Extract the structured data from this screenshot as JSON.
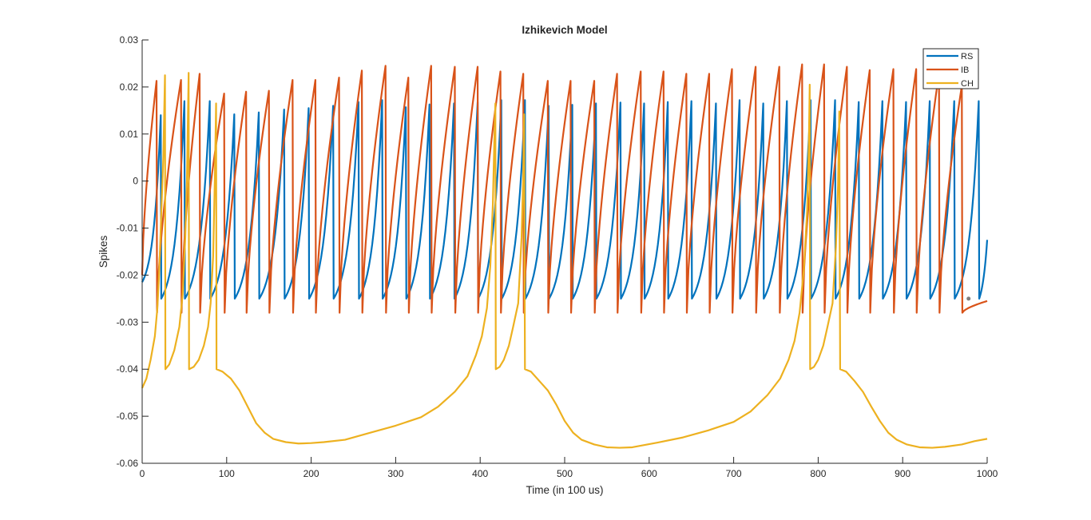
{
  "chart_data": {
    "type": "line",
    "title": "Izhikevich Model",
    "xlabel": "Time (in 100 us)",
    "ylabel": "Spikes",
    "xlim": [
      0,
      1000
    ],
    "ylim": [
      -0.06,
      0.03
    ],
    "xticks": [
      0,
      100,
      200,
      300,
      400,
      500,
      600,
      700,
      800,
      900,
      1000
    ],
    "yticks": [
      -0.06,
      -0.05,
      -0.04,
      -0.03,
      -0.02,
      -0.01,
      0,
      0.01,
      0.02,
      0.03
    ],
    "xtick_labels": [
      "0",
      "100",
      "200",
      "300",
      "400",
      "500",
      "600",
      "700",
      "800",
      "900",
      "1000"
    ],
    "ytick_labels": [
      "-0.06",
      "-0.05",
      "-0.04",
      "-0.03",
      "-0.02",
      "-0.01",
      "0",
      "0.01",
      "0.02",
      "0.03"
    ],
    "grid": false,
    "legend_position": "top-right",
    "series": [
      {
        "name": "RS",
        "color": "#0072BD",
        "start": -0.0215,
        "reset": -0.025,
        "shape": 1.0,
        "spikes": [
          {
            "t": 22,
            "peak": 0.014
          },
          {
            "t": 50,
            "peak": 0.017
          },
          {
            "t": 80,
            "peak": 0.017
          },
          {
            "t": 109,
            "peak": 0.0142
          },
          {
            "t": 138,
            "peak": 0.0146
          },
          {
            "t": 168,
            "peak": 0.0152
          },
          {
            "t": 197,
            "peak": 0.0155
          },
          {
            "t": 226,
            "peak": 0.016
          },
          {
            "t": 256,
            "peak": 0.0168
          },
          {
            "t": 284,
            "peak": 0.0172
          },
          {
            "t": 312,
            "peak": 0.0157
          },
          {
            "t": 340,
            "peak": 0.0163
          },
          {
            "t": 369,
            "peak": 0.0165
          },
          {
            "t": 397,
            "peak": 0.0168
          },
          {
            "t": 425,
            "peak": 0.0172
          },
          {
            "t": 453,
            "peak": 0.0172
          },
          {
            "t": 481,
            "peak": 0.016
          },
          {
            "t": 509,
            "peak": 0.0162
          },
          {
            "t": 537,
            "peak": 0.0165
          },
          {
            "t": 566,
            "peak": 0.0167
          },
          {
            "t": 594,
            "peak": 0.0165
          },
          {
            "t": 622,
            "peak": 0.0168
          },
          {
            "t": 650,
            "peak": 0.017
          },
          {
            "t": 679,
            "peak": 0.0165
          },
          {
            "t": 707,
            "peak": 0.0172
          },
          {
            "t": 735,
            "peak": 0.0165
          },
          {
            "t": 763,
            "peak": 0.017
          },
          {
            "t": 791,
            "peak": 0.0172
          },
          {
            "t": 820,
            "peak": 0.0172
          },
          {
            "t": 848,
            "peak": 0.0168
          },
          {
            "t": 876,
            "peak": 0.017
          },
          {
            "t": 904,
            "peak": 0.0168
          },
          {
            "t": 932,
            "peak": 0.017
          },
          {
            "t": 961,
            "peak": 0.017
          },
          {
            "t": 990,
            "peak": 0.017
          }
        ],
        "end_value": -0.0125
      },
      {
        "name": "IB",
        "color": "#D95319",
        "start": -0.02,
        "reset": -0.028,
        "shape": 0.65,
        "spikes": [
          {
            "t": 17,
            "peak": 0.0213
          },
          {
            "t": 46,
            "peak": 0.0215
          },
          {
            "t": 68,
            "peak": 0.0228
          },
          {
            "t": 97,
            "peak": 0.0186
          },
          {
            "t": 123,
            "peak": 0.019
          },
          {
            "t": 150,
            "peak": 0.0192
          },
          {
            "t": 178,
            "peak": 0.0215
          },
          {
            "t": 205,
            "peak": 0.0215
          },
          {
            "t": 233,
            "peak": 0.022
          },
          {
            "t": 260,
            "peak": 0.0235
          },
          {
            "t": 288,
            "peak": 0.0245
          },
          {
            "t": 315,
            "peak": 0.022
          },
          {
            "t": 342,
            "peak": 0.0245
          },
          {
            "t": 370,
            "peak": 0.0243
          },
          {
            "t": 397,
            "peak": 0.0243
          },
          {
            "t": 424,
            "peak": 0.0233
          },
          {
            "t": 451,
            "peak": 0.0228
          },
          {
            "t": 480,
            "peak": 0.0213
          },
          {
            "t": 507,
            "peak": 0.0213
          },
          {
            "t": 535,
            "peak": 0.0213
          },
          {
            "t": 562,
            "peak": 0.0228
          },
          {
            "t": 590,
            "peak": 0.0233
          },
          {
            "t": 617,
            "peak": 0.0233
          },
          {
            "t": 644,
            "peak": 0.0228
          },
          {
            "t": 671,
            "peak": 0.0228
          },
          {
            "t": 698,
            "peak": 0.0238
          },
          {
            "t": 726,
            "peak": 0.0243
          },
          {
            "t": 754,
            "peak": 0.0243
          },
          {
            "t": 781,
            "peak": 0.0248
          },
          {
            "t": 807,
            "peak": 0.0248
          },
          {
            "t": 834,
            "peak": 0.0243
          },
          {
            "t": 861,
            "peak": 0.0236
          },
          {
            "t": 889,
            "peak": 0.0238
          },
          {
            "t": 916,
            "peak": 0.0238
          },
          {
            "t": 943,
            "peak": 0.023
          },
          {
            "t": 970,
            "peak": 0.0203
          }
        ],
        "end_value": -0.0255
      },
      {
        "name": "CH",
        "color": "#EDB120",
        "points": [
          [
            0,
            -0.044
          ],
          [
            5,
            -0.042
          ],
          [
            10,
            -0.038
          ],
          [
            15,
            -0.033
          ],
          [
            18,
            -0.027
          ],
          [
            20,
            -0.02
          ],
          [
            22,
            -0.01
          ],
          [
            25,
            0.005
          ],
          [
            27,
            0.0225
          ],
          [
            27.5,
            -0.04
          ],
          [
            32,
            -0.039
          ],
          [
            38,
            -0.036
          ],
          [
            44,
            -0.031
          ],
          [
            48,
            -0.024
          ],
          [
            51,
            -0.012
          ],
          [
            53,
            0.0005
          ],
          [
            55,
            0.023
          ],
          [
            55.5,
            -0.04
          ],
          [
            61,
            -0.0395
          ],
          [
            67,
            -0.038
          ],
          [
            73,
            -0.035
          ],
          [
            78,
            -0.031
          ],
          [
            81,
            -0.026
          ],
          [
            84,
            -0.016
          ],
          [
            86,
            0.0005
          ],
          [
            87.5,
            0.0165
          ],
          [
            88,
            -0.04
          ],
          [
            95,
            -0.0405
          ],
          [
            105,
            -0.042
          ],
          [
            115,
            -0.0445
          ],
          [
            125,
            -0.048
          ],
          [
            135,
            -0.0515
          ],
          [
            145,
            -0.0535
          ],
          [
            155,
            -0.0548
          ],
          [
            170,
            -0.0555
          ],
          [
            185,
            -0.0558
          ],
          [
            200,
            -0.0557
          ],
          [
            215,
            -0.0555
          ],
          [
            240,
            -0.055
          ],
          [
            270,
            -0.0535
          ],
          [
            300,
            -0.052
          ],
          [
            330,
            -0.0502
          ],
          [
            350,
            -0.048
          ],
          [
            370,
            -0.0448
          ],
          [
            385,
            -0.0415
          ],
          [
            395,
            -0.037
          ],
          [
            402,
            -0.033
          ],
          [
            408,
            -0.027
          ],
          [
            412,
            -0.018
          ],
          [
            415,
            -0.005
          ],
          [
            417,
            0.0105
          ],
          [
            418,
            0.0165
          ],
          [
            418.5,
            -0.04
          ],
          [
            423,
            -0.0395
          ],
          [
            428,
            -0.038
          ],
          [
            434,
            -0.035
          ],
          [
            439,
            -0.031
          ],
          [
            445,
            -0.026
          ],
          [
            449,
            -0.012
          ],
          [
            451,
            0.0012
          ],
          [
            452,
            0.0142
          ],
          [
            453,
            -0.04
          ],
          [
            460,
            -0.0405
          ],
          [
            470,
            -0.0425
          ],
          [
            480,
            -0.0445
          ],
          [
            490,
            -0.0475
          ],
          [
            500,
            -0.051
          ],
          [
            510,
            -0.0535
          ],
          [
            520,
            -0.055
          ],
          [
            535,
            -0.056
          ],
          [
            550,
            -0.0566
          ],
          [
            565,
            -0.0567
          ],
          [
            580,
            -0.0566
          ],
          [
            610,
            -0.0556
          ],
          [
            640,
            -0.0545
          ],
          [
            670,
            -0.053
          ],
          [
            700,
            -0.0512
          ],
          [
            720,
            -0.049
          ],
          [
            740,
            -0.0455
          ],
          [
            755,
            -0.042
          ],
          [
            765,
            -0.038
          ],
          [
            772,
            -0.034
          ],
          [
            778,
            -0.028
          ],
          [
            783,
            -0.019
          ],
          [
            787,
            -0.006
          ],
          [
            789,
            0.0085
          ],
          [
            790,
            0.0205
          ],
          [
            790.5,
            -0.04
          ],
          [
            795,
            -0.0395
          ],
          [
            800,
            -0.038
          ],
          [
            806,
            -0.035
          ],
          [
            811,
            -0.031
          ],
          [
            817,
            -0.026
          ],
          [
            821,
            -0.014
          ],
          [
            823.5,
            -0.001
          ],
          [
            825,
            0.0148
          ],
          [
            826,
            -0.04
          ],
          [
            833,
            -0.0405
          ],
          [
            843,
            -0.0425
          ],
          [
            853,
            -0.0448
          ],
          [
            863,
            -0.048
          ],
          [
            873,
            -0.051
          ],
          [
            883,
            -0.0535
          ],
          [
            893,
            -0.055
          ],
          [
            905,
            -0.056
          ],
          [
            920,
            -0.0566
          ],
          [
            935,
            -0.0567
          ],
          [
            950,
            -0.0565
          ],
          [
            970,
            -0.056
          ],
          [
            985,
            -0.0553
          ],
          [
            1000,
            -0.0548
          ]
        ]
      }
    ],
    "marker": {
      "x": 978,
      "y": -0.025,
      "color": "#7F7F7F"
    }
  }
}
